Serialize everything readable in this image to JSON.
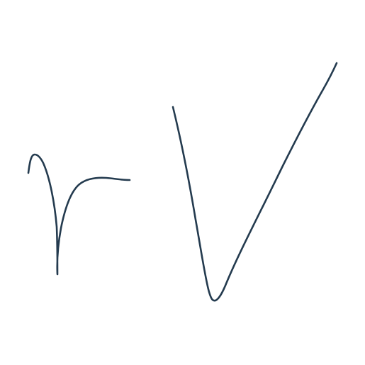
{
  "drawing": {
    "ink_color": "#243b4f",
    "background_color": "#ffffff",
    "strokes": [
      "handwritten-r-stroke",
      "handwritten-v-stroke"
    ]
  }
}
